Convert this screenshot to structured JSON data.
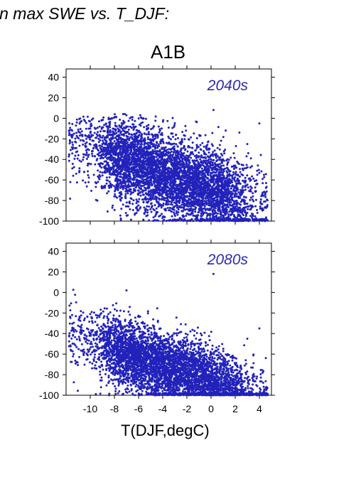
{
  "heading": "in max SWE vs. T_DJF:",
  "scenario": "A1B",
  "xlabel": "T(DJF,degC)",
  "colors": {
    "points": "#2222bb",
    "axes": "#000000"
  },
  "chart_data": [
    {
      "type": "scatter",
      "panel_label": "2040s",
      "xlim": [
        -12,
        5
      ],
      "ylim": [
        -100,
        48
      ],
      "xticks": [
        -10,
        -8,
        -6,
        -4,
        -2,
        0,
        2,
        4
      ],
      "yticks": [
        -100,
        -80,
        -60,
        -40,
        -20,
        0,
        20,
        40
      ],
      "show_xtick_labels": false,
      "description": "dense cloud; ~6000 points; upper envelope near 0 at T -7..0, points reach -100 mostly for T > -6; mean decreasing from ~-20 at T=-10 to ~-70 at T=1",
      "samples": [
        [
          -11.5,
          -12
        ],
        [
          -10,
          -10
        ],
        [
          -9,
          -25
        ],
        [
          -7,
          3
        ],
        [
          -6,
          -30
        ],
        [
          -5,
          -45
        ],
        [
          -4,
          -55
        ],
        [
          -3,
          -60
        ],
        [
          -2,
          -65
        ],
        [
          -1,
          -70
        ],
        [
          0,
          -75
        ],
        [
          0.2,
          8
        ],
        [
          1,
          -85
        ],
        [
          2,
          -90
        ],
        [
          3,
          -25
        ],
        [
          4,
          -5
        ],
        [
          4.5,
          -98
        ]
      ]
    },
    {
      "type": "scatter",
      "panel_label": "2080s",
      "xlim": [
        -12,
        5
      ],
      "ylim": [
        -100,
        48
      ],
      "xticks": [
        -10,
        -8,
        -6,
        -4,
        -2,
        0,
        2,
        4
      ],
      "yticks": [
        -100,
        -80,
        -60,
        -40,
        -20,
        0,
        20,
        40
      ],
      "show_xtick_labels": true,
      "description": "dense cloud; ~6000 points; mean decreasing from ~-45 at T=-10 to ~-95 at T=2; most points piled near -100 for T > -6",
      "samples": [
        [
          -11.5,
          -22
        ],
        [
          -10,
          -50
        ],
        [
          -9,
          -60
        ],
        [
          -7,
          2
        ],
        [
          -6,
          -55
        ],
        [
          -5,
          -70
        ],
        [
          -4,
          -80
        ],
        [
          -3,
          -85
        ],
        [
          -2,
          -90
        ],
        [
          -1,
          -92
        ],
        [
          0,
          -95
        ],
        [
          0.2,
          18
        ],
        [
          1,
          -97
        ],
        [
          2,
          -99
        ],
        [
          3,
          -45
        ],
        [
          4,
          -35
        ],
        [
          4.5,
          -100
        ]
      ]
    }
  ]
}
